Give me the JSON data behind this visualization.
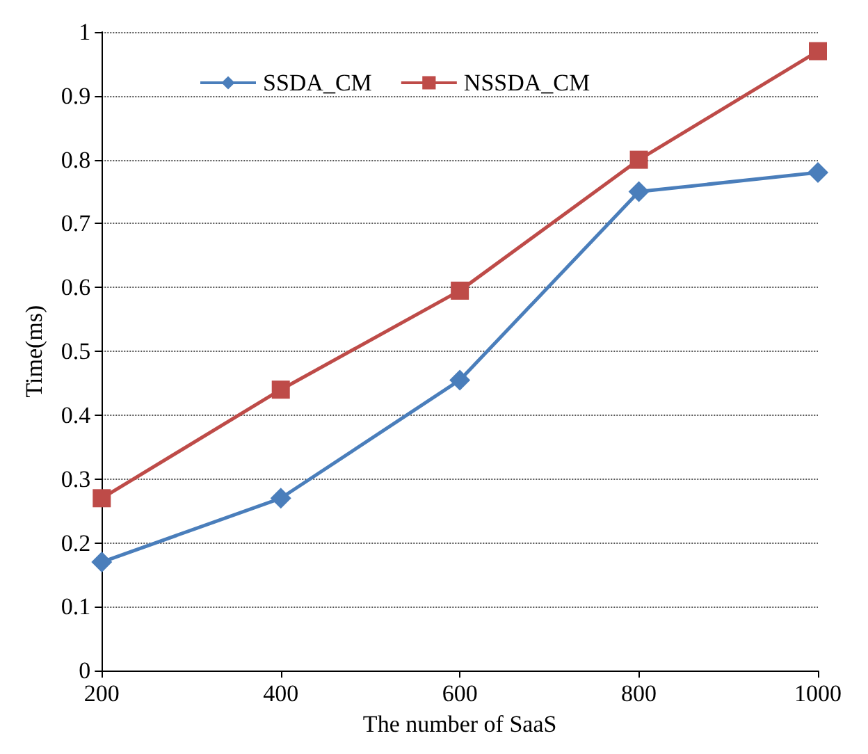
{
  "chart_data": {
    "type": "line",
    "xlabel": "The number of SaaS",
    "ylabel": "Time(ms)",
    "x": [
      200,
      400,
      600,
      800,
      1000
    ],
    "series": [
      {
        "name": "SSDA_CM",
        "color": "#4a7ebb",
        "values": [
          0.17,
          0.27,
          0.455,
          0.75,
          0.78
        ],
        "marker": "diamond"
      },
      {
        "name": "NSSDA_CM",
        "color": "#be4b48",
        "values": [
          0.27,
          0.44,
          0.595,
          0.8,
          0.97
        ],
        "marker": "square"
      }
    ],
    "xlim": [
      200,
      1000
    ],
    "xticks": [
      200,
      400,
      600,
      800,
      1000
    ],
    "ylim": [
      0,
      1
    ],
    "yticks": [
      0,
      0.1,
      0.2,
      0.3,
      0.4,
      0.5,
      0.6,
      0.7,
      0.8,
      0.9,
      1
    ],
    "grid": "y",
    "legend": "top left",
    "line_style": "solid"
  }
}
